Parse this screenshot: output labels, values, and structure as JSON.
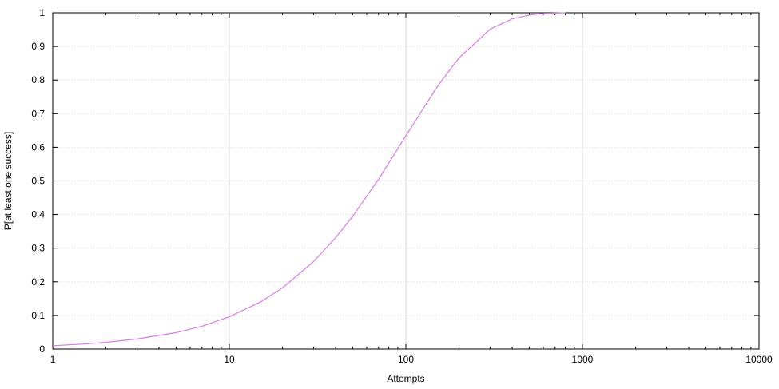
{
  "chart_data": {
    "type": "line",
    "title": "",
    "xlabel": "Attempts",
    "ylabel": "P[at least one success]",
    "xscale": "log",
    "xlim": [
      1,
      10000
    ],
    "ylim": [
      0,
      1
    ],
    "x_ticks": [
      "1",
      "10",
      "100",
      "1000",
      "10000"
    ],
    "y_ticks": [
      "0",
      "0.1",
      "0.2",
      "0.3",
      "0.4",
      "0.5",
      "0.6",
      "0.7",
      "0.8",
      "0.9",
      "1"
    ],
    "grid": true,
    "legend": "none",
    "line_color": "#dd77ee",
    "series": [
      {
        "x": [
          1,
          1.5,
          2,
          3,
          5,
          7,
          10,
          15,
          20,
          30,
          40,
          50,
          70,
          100,
          150,
          200,
          300,
          400,
          500,
          600,
          800
        ],
        "y": [
          0.01,
          0.015,
          0.02,
          0.03,
          0.049,
          0.068,
          0.096,
          0.14,
          0.182,
          0.26,
          0.331,
          0.395,
          0.505,
          0.634,
          0.779,
          0.866,
          0.951,
          0.982,
          0.993,
          0.998,
          1.0
        ]
      }
    ]
  }
}
